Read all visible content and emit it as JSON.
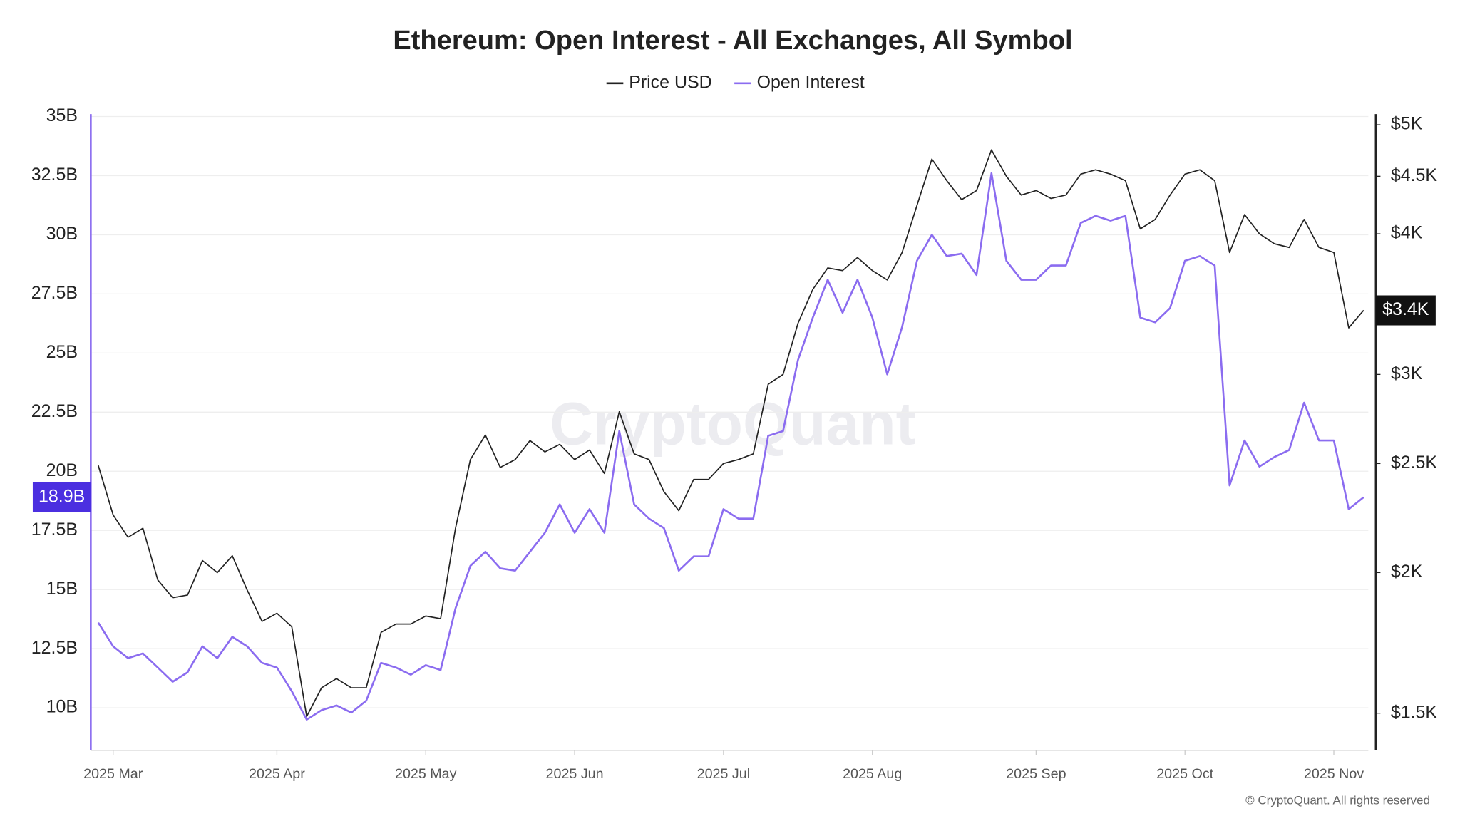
{
  "chart_data": {
    "type": "line",
    "title": "Ethereum: Open Interest - All Exchanges, All Symbol",
    "watermark": "CryptoQuant",
    "footer": "© CryptoQuant. All rights reserved",
    "categories": [
      null,
      "2025 Mar",
      null,
      null,
      null,
      null,
      null,
      null,
      null,
      null,
      null,
      null,
      "2025 Apr",
      null,
      null,
      null,
      null,
      null,
      null,
      null,
      null,
      null,
      "2025 May",
      null,
      null,
      null,
      null,
      null,
      null,
      null,
      null,
      null,
      "2025 Jun",
      null,
      null,
      null,
      null,
      null,
      null,
      null,
      null,
      null,
      "2025 Jul",
      null,
      null,
      null,
      null,
      null,
      null,
      null,
      null,
      null,
      "2025 Aug",
      null,
      null,
      null,
      null,
      null,
      null,
      null,
      null,
      null,
      null,
      "2025 Sep",
      null,
      null,
      null,
      null,
      null,
      null,
      null,
      null,
      null,
      "2025 Oct",
      null,
      null,
      null,
      null,
      null,
      null,
      null,
      null,
      null,
      "2025 Nov",
      null,
      null
    ],
    "series": [
      {
        "name": "Price USD",
        "color": "#222222",
        "axis": "y2",
        "last_label": "$3.4K",
        "values": [
          2.49,
          2.25,
          2.15,
          2.19,
          1.97,
          1.9,
          1.91,
          2.05,
          2.0,
          2.07,
          1.93,
          1.81,
          1.84,
          1.79,
          1.49,
          1.58,
          1.61,
          1.58,
          1.58,
          1.77,
          1.8,
          1.8,
          1.83,
          1.82,
          2.19,
          2.52,
          2.65,
          2.48,
          2.52,
          2.62,
          2.56,
          2.6,
          2.52,
          2.57,
          2.45,
          2.78,
          2.55,
          2.52,
          2.36,
          2.27,
          2.42,
          2.42,
          2.5,
          2.52,
          2.55,
          2.94,
          3.0,
          3.33,
          3.57,
          3.73,
          3.71,
          3.81,
          3.71,
          3.64,
          3.85,
          4.24,
          4.66,
          4.46,
          4.29,
          4.37,
          4.75,
          4.5,
          4.33,
          4.37,
          4.3,
          4.33,
          4.52,
          4.56,
          4.52,
          4.46,
          4.04,
          4.12,
          4.33,
          4.52,
          4.56,
          4.46,
          3.85,
          4.16,
          4.0,
          3.92,
          3.89,
          4.12,
          3.89,
          3.85,
          3.3,
          3.42
        ]
      },
      {
        "name": "Open Interest",
        "color": "#8b6cf0",
        "axis": "y",
        "last_label": "18.9B",
        "label_color": "#4b2fe0",
        "values": [
          13.6,
          12.6,
          12.1,
          12.3,
          11.7,
          11.1,
          11.5,
          12.6,
          12.1,
          13.0,
          12.6,
          11.9,
          11.7,
          10.7,
          9.5,
          9.9,
          10.1,
          9.8,
          10.3,
          11.9,
          11.7,
          11.4,
          11.8,
          11.6,
          14.2,
          16.0,
          16.6,
          15.9,
          15.8,
          16.6,
          17.4,
          18.6,
          17.4,
          18.4,
          17.4,
          21.7,
          18.6,
          18.0,
          17.6,
          15.8,
          16.4,
          16.4,
          18.4,
          18.0,
          18.0,
          21.5,
          21.7,
          24.7,
          26.5,
          28.1,
          26.7,
          28.1,
          26.5,
          24.1,
          26.1,
          28.9,
          30.0,
          29.1,
          29.2,
          28.3,
          32.6,
          28.9,
          28.1,
          28.1,
          28.7,
          28.7,
          30.5,
          30.8,
          30.6,
          30.8,
          26.5,
          26.3,
          26.9,
          28.9,
          29.1,
          28.7,
          19.4,
          21.3,
          20.2,
          20.6,
          20.9,
          22.9,
          21.3,
          21.3,
          18.4,
          18.9
        ]
      }
    ],
    "ylim": [
      8.2,
      35.1
    ],
    "yticks": [
      {
        "value": 10,
        "label": "10B"
      },
      {
        "value": 12.5,
        "label": "12.5B"
      },
      {
        "value": 15,
        "label": "15B"
      },
      {
        "value": 17.5,
        "label": "17.5B"
      },
      {
        "value": 20,
        "label": "20B"
      },
      {
        "value": 22.5,
        "label": "22.5B"
      },
      {
        "value": 25,
        "label": "25B"
      },
      {
        "value": 27.5,
        "label": "27.5B"
      },
      {
        "value": 30,
        "label": "30B"
      },
      {
        "value": 32.5,
        "label": "32.5B"
      },
      {
        "value": 35,
        "label": "35B"
      }
    ],
    "y2lim": [
      1.39,
      5.11
    ],
    "y2scale": "log",
    "y2ticks": [
      {
        "value": 1.5,
        "label": "$1.5K"
      },
      {
        "value": 2,
        "label": "$2K"
      },
      {
        "value": 2.5,
        "label": "$2.5K"
      },
      {
        "value": 3,
        "label": "$3K"
      },
      {
        "value": 4,
        "label": "$4K"
      },
      {
        "value": 4.5,
        "label": "$4.5K"
      },
      {
        "value": 5,
        "label": "$5K"
      }
    ],
    "grid": true,
    "legend": "top"
  }
}
